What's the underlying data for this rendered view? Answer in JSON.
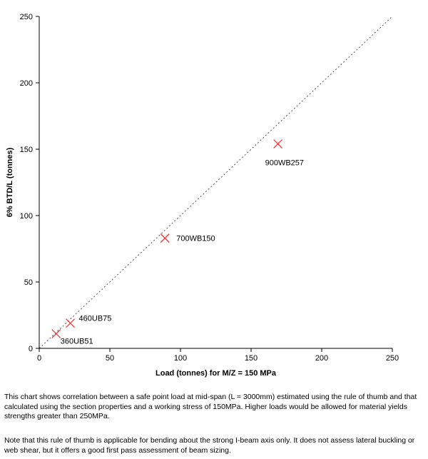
{
  "chart_data": {
    "type": "scatter",
    "title": "",
    "xlabel": "Load (tonnes) for M/Z = 150 MPa",
    "ylabel": "6% BTD/L (tonnes)",
    "xlim": [
      0,
      250
    ],
    "ylim": [
      0,
      250
    ],
    "xticks": [
      0,
      50,
      100,
      150,
      200,
      250
    ],
    "yticks": [
      0,
      50,
      100,
      150,
      200,
      250
    ],
    "grid": false,
    "marker": "x",
    "marker_color": "#f03c3c",
    "reference_line": {
      "style": "dotted",
      "from": [
        0,
        0
      ],
      "to": [
        250,
        250
      ]
    },
    "points": [
      {
        "label": "360UB51",
        "x": 12,
        "y": 11
      },
      {
        "label": "460UB75",
        "x": 22,
        "y": 19
      },
      {
        "label": "700WB150",
        "x": 89,
        "y": 83
      },
      {
        "label": "900WB257",
        "x": 169,
        "y": 154
      }
    ]
  },
  "caption": {
    "paragraph1": "This chart shows correlation between a safe point load at mid-span (L = 3000mm) estimated using the rule of thumb and that calculated using the section properties and a working stress of 150MPa.  Higher loads would be allowed for material yields strengths greater than 250MPa.",
    "paragraph2": "Note that this rule of thumb is applicable for bending about the strong I-beam axis only.  It does not assess lateral buckling or web shear, but it offers a good first pass assessment of beam sizing."
  }
}
